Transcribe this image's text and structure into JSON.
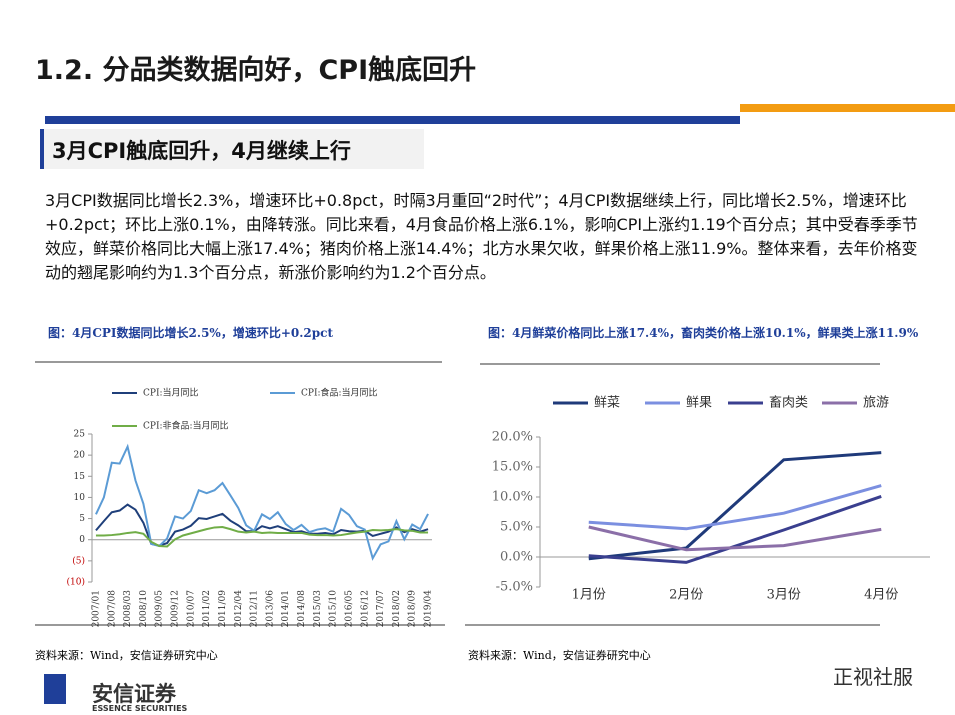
{
  "header": {
    "title": "1.2. 分品类数据向好，CPI触底回升",
    "subtitle": "3月CPI触底回升，4月继续上行",
    "body": "3月CPI数据同比增长2.3%，增速环比+0.8pct，时隔3月重回“2时代”；4月CPI数据继续上行，同比增长2.5%，增速环比+0.2pct；环比上涨0.1%，由降转涨。同比来看，4月食品价格上涨6.1%，影响CPI上涨约1.19个百分点；其中受春季季节效应，鲜菜价格同比大幅上涨17.4%；猪肉价格上涨14.4%；北方水果欠收，鲜果价格上涨11.9%。整体来看，去年价格变动的翘尾影响约为1.3个百分点，新涨价影响约为1.2个百分点。"
  },
  "chart_data": [
    {
      "type": "line",
      "title": "图：4月CPI数据同比增长2.5%，增速环比+0.2pct",
      "source": "资料来源：Wind，安信证券研究中心",
      "categories": [
        "2007/01",
        null,
        "2007/08",
        null,
        "2008/03",
        null,
        "2008/10",
        null,
        "2009/05",
        null,
        "2009/12",
        null,
        "2010/07",
        null,
        "2011/02",
        null,
        "2011/09",
        null,
        "2012/04",
        null,
        "2012/11",
        null,
        "2013/06",
        null,
        "2014/01",
        null,
        "2014/08",
        null,
        "2015/03",
        null,
        "2015/10",
        null,
        "2016/05",
        null,
        "2016/12",
        null,
        "2017/07",
        null,
        "2018/02",
        null,
        "2018/09",
        null,
        "2019/04"
      ],
      "series": [
        {
          "name": "CPI:当月同比",
          "color": "#1f3f7a",
          "values": [
            2.2,
            4.4,
            6.5,
            6.9,
            8.3,
            7.1,
            4.0,
            -1,
            -1.4,
            -0.8,
            1.9,
            2.4,
            3.3,
            5.1,
            4.9,
            5.5,
            6.1,
            4.5,
            3.4,
            2.0,
            2.0,
            3.2,
            2.7,
            3.2,
            2.5,
            1.8,
            2.0,
            1.4,
            1.4,
            1.6,
            1.3,
            2.3,
            2.0,
            1.9,
            2.1,
            0.9,
            1.4,
            1.9,
            2.9,
            1.8,
            2.5,
            1.9,
            2.5
          ]
        },
        {
          "name": "CPI:食品:当月同比",
          "color": "#5b9bd5",
          "values": [
            6,
            10,
            18.2,
            18,
            22,
            14,
            8.5,
            -1,
            -1.5,
            0.3,
            5.5,
            5,
            6.8,
            11.7,
            11,
            11.7,
            13.4,
            10.5,
            7.5,
            3.4,
            2.1,
            6,
            4.9,
            6.5,
            3.7,
            2.3,
            3.5,
            1.8,
            2.4,
            2.7,
            1.9,
            7.3,
            5.9,
            3.2,
            2.4,
            -4.4,
            -1.1,
            -0.4,
            4.4,
            0.1,
            3.6,
            2.5,
            6.1
          ]
        },
        {
          "name": "CPI:非食品:当月同比",
          "color": "#70ad47",
          "values": [
            1,
            1,
            1.1,
            1.3,
            1.6,
            1.8,
            1.4,
            -0.5,
            -1.5,
            -1.6,
            0.1,
            1,
            1.5,
            2.0,
            2.5,
            2.9,
            3.0,
            2.5,
            1.9,
            1.7,
            1.9,
            1.6,
            1.7,
            1.6,
            1.6,
            1.6,
            1.6,
            1.2,
            1.1,
            1.1,
            1.0,
            1.1,
            1.4,
            1.7,
            1.9,
            2.3,
            2.2,
            2.3,
            2.5,
            2.2,
            2.1,
            1.7,
            1.7
          ]
        }
      ],
      "ylim": [
        -10,
        25
      ],
      "yticks": [
        {
          "value": -10,
          "label": "(10)"
        },
        {
          "value": -5,
          "label": "(5)"
        },
        0,
        5,
        10,
        15,
        20,
        25
      ]
    },
    {
      "type": "line",
      "title": "图：4月鲜菜价格同比上涨17.4%，畜肉类价格上涨10.1%，鲜果类上涨11.9%",
      "source": "资料来源：Wind，安信证券研究中心",
      "categories": [
        "1月份",
        "2月份",
        "3月份",
        "4月份"
      ],
      "series": [
        {
          "name": "鲜菜",
          "color": "#1f3a7a",
          "values": [
            -0.3,
            1.5,
            16.2,
            17.4
          ]
        },
        {
          "name": "鲜果",
          "color": "#7b8fe0",
          "values": [
            5.8,
            4.7,
            7.3,
            11.9
          ]
        },
        {
          "name": "畜肉类",
          "color": "#3a3f8f",
          "values": [
            0.2,
            -0.9,
            4.5,
            10.1
          ]
        },
        {
          "name": "旅游",
          "color": "#8b6fa8",
          "values": [
            5.0,
            1.2,
            1.9,
            4.6
          ]
        }
      ],
      "ylim": [
        -5,
        20
      ],
      "yticks": [
        {
          "value": -5,
          "label": "-5.0%"
        },
        {
          "value": 0,
          "label": "0.0%"
        },
        {
          "value": 5,
          "label": "5.0%"
        },
        {
          "value": 10,
          "label": "10.0%"
        },
        {
          "value": 15,
          "label": "15.0%"
        },
        {
          "value": 20,
          "label": "20.0%"
        }
      ]
    }
  ],
  "footer": {
    "logo_cn": "安信证券",
    "logo_en": "ESSENCE SECURITIES",
    "watermark": "正视社服"
  }
}
